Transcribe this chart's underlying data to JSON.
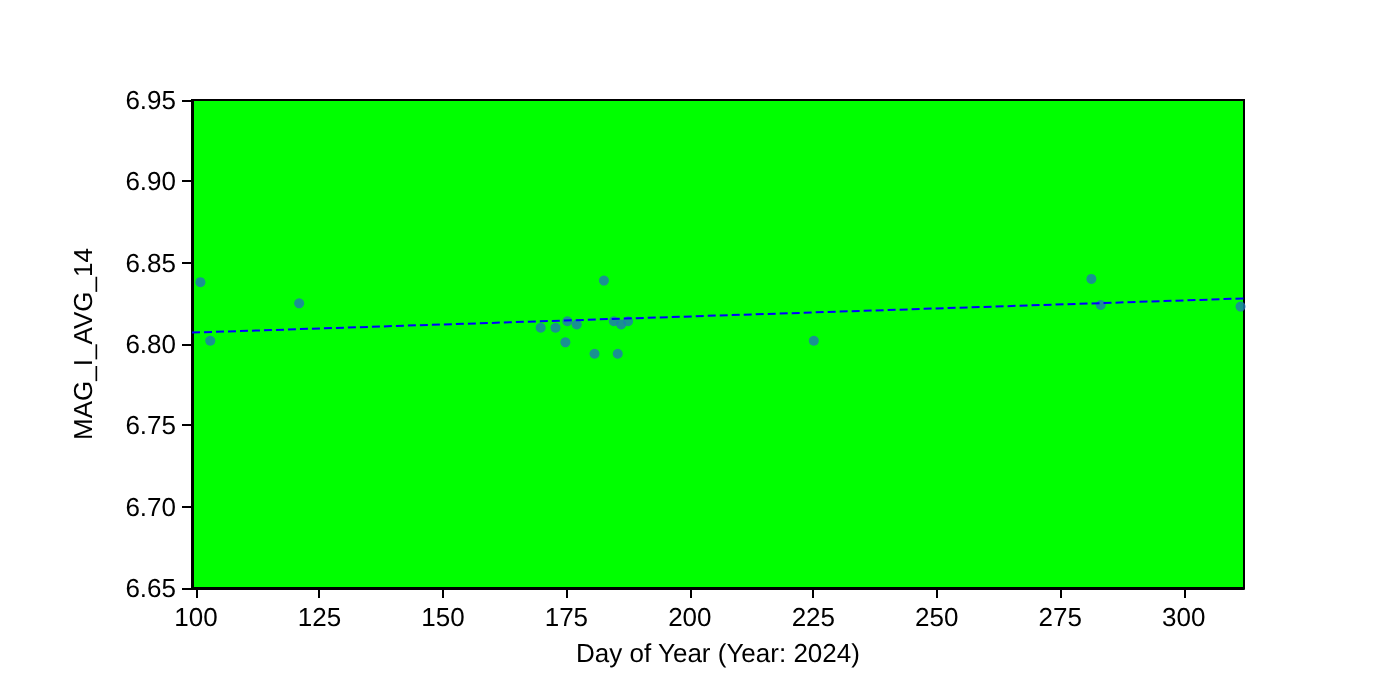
{
  "chart_data": {
    "type": "scatter",
    "xlabel": "Day of Year (Year: 2024)",
    "ylabel": "MAG_I_AVG_14",
    "xlim": [
      99.2,
      312.2
    ],
    "ylim": [
      6.65,
      6.95
    ],
    "xticks": [
      100,
      125,
      150,
      175,
      200,
      225,
      250,
      275,
      300
    ],
    "yticks": [
      {
        "value": 6.65,
        "label": "6.65"
      },
      {
        "value": 6.7,
        "label": "6.70"
      },
      {
        "value": 6.75,
        "label": "6.75"
      },
      {
        "value": 6.8,
        "label": "6.80"
      },
      {
        "value": 6.85,
        "label": "6.85"
      },
      {
        "value": 6.9,
        "label": "6.90"
      },
      {
        "value": 6.95,
        "label": "6.95"
      }
    ],
    "grid": false,
    "marker": "circle",
    "series": [
      {
        "color": "#1f77b4",
        "x": [
          100.9,
          102.9,
          120.9,
          169.8,
          172.8,
          174.8,
          175.2,
          177.1,
          180.7,
          182.6,
          184.6,
          185.4,
          186.1,
          187.5,
          225.1,
          281.3,
          283.2,
          311.5
        ],
        "values": [
          6.838,
          6.802,
          6.825,
          6.81,
          6.81,
          6.801,
          6.814,
          6.812,
          6.794,
          6.839,
          6.814,
          6.794,
          6.812,
          6.814,
          6.802,
          6.84,
          6.824,
          6.823
        ]
      },
      {
        "type": "line",
        "color": "#0000ff",
        "line_style": "dashed",
        "marker": "none",
        "x": [
          99.2,
          312.2
        ],
        "values": [
          6.807,
          6.828
        ]
      }
    ]
  }
}
